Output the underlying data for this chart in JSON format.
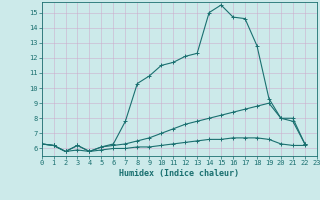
{
  "xlabel": "Humidex (Indice chaleur)",
  "xlim": [
    0,
    23
  ],
  "ylim": [
    5.5,
    15.7
  ],
  "yticks": [
    6,
    7,
    8,
    9,
    10,
    11,
    12,
    13,
    14,
    15
  ],
  "xticks": [
    0,
    1,
    2,
    3,
    4,
    5,
    6,
    7,
    8,
    9,
    10,
    11,
    12,
    13,
    14,
    15,
    16,
    17,
    18,
    19,
    20,
    21,
    22,
    23
  ],
  "bg_color": "#cceaea",
  "line_color": "#1a7070",
  "grid_color": "#ccaacc",
  "line1_x": [
    0,
    1,
    2,
    3,
    4,
    5,
    6,
    7,
    8,
    9,
    10,
    11,
    12,
    13,
    14,
    15,
    16,
    17,
    18,
    19,
    20,
    21,
    22
  ],
  "line1_y": [
    6.3,
    6.2,
    5.8,
    6.2,
    5.8,
    6.1,
    6.3,
    7.8,
    10.3,
    10.8,
    11.5,
    11.7,
    12.1,
    12.3,
    15.0,
    15.5,
    14.7,
    14.6,
    12.8,
    9.3,
    8.0,
    8.0,
    6.3
  ],
  "line2_x": [
    0,
    1,
    2,
    3,
    4,
    5,
    6,
    7,
    8,
    9,
    10,
    11,
    12,
    13,
    14,
    15,
    16,
    17,
    18,
    19,
    20,
    21,
    22
  ],
  "line2_y": [
    6.3,
    6.2,
    5.8,
    6.2,
    5.8,
    6.1,
    6.2,
    6.3,
    6.5,
    6.7,
    7.0,
    7.3,
    7.6,
    7.8,
    8.0,
    8.2,
    8.4,
    8.6,
    8.8,
    9.0,
    8.0,
    7.8,
    6.3
  ],
  "line3_x": [
    0,
    1,
    2,
    3,
    4,
    5,
    6,
    7,
    8,
    9,
    10,
    11,
    12,
    13,
    14,
    15,
    16,
    17,
    18,
    19,
    20,
    21,
    22
  ],
  "line3_y": [
    6.3,
    6.2,
    5.8,
    5.9,
    5.8,
    5.9,
    6.0,
    6.0,
    6.1,
    6.1,
    6.2,
    6.3,
    6.4,
    6.5,
    6.6,
    6.6,
    6.7,
    6.7,
    6.7,
    6.6,
    6.3,
    6.2,
    6.2
  ]
}
